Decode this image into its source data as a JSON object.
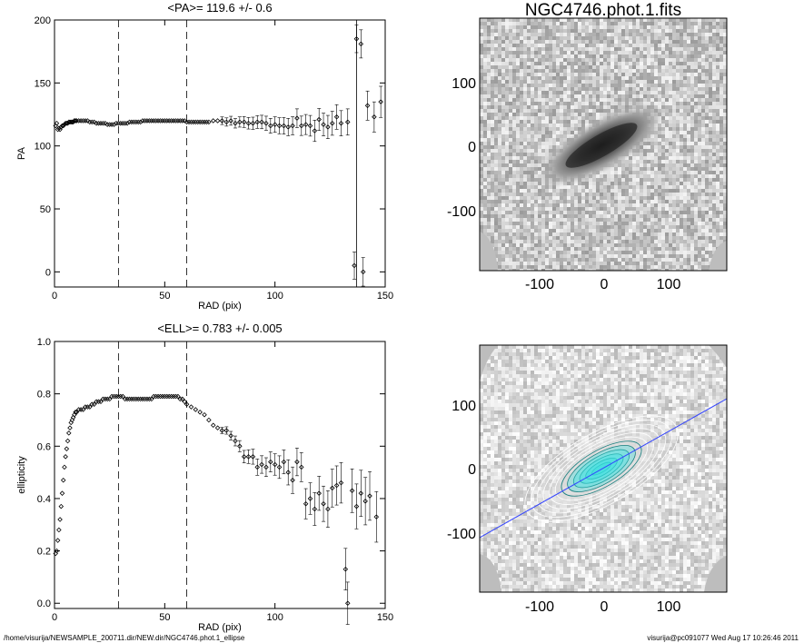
{
  "chart_data": [
    {
      "type": "scatter",
      "title": "<PA>= 119.6 +/-   0.6",
      "xlabel": "RAD (pix)",
      "ylabel": "PA",
      "xlim": [
        0,
        150
      ],
      "ylim": [
        -12,
        200
      ],
      "xticks": [
        0,
        50,
        100,
        150
      ],
      "yticks": [
        0,
        50,
        100,
        150,
        200
      ],
      "grid": false,
      "vlines_dashed": [
        29,
        60
      ],
      "vline_solid": 137,
      "points": [
        [
          0.5,
          116
        ],
        [
          1,
          118
        ],
        [
          1.5,
          113
        ],
        [
          2,
          114
        ],
        [
          2.5,
          113
        ],
        [
          3,
          115
        ],
        [
          3.5,
          116
        ],
        [
          4,
          116
        ],
        [
          4.5,
          117
        ],
        [
          5,
          118
        ],
        [
          5.5,
          118
        ],
        [
          6,
          118
        ],
        [
          6.5,
          119
        ],
        [
          7,
          119
        ],
        [
          7.5,
          119
        ],
        [
          8,
          119
        ],
        [
          8.5,
          119
        ],
        [
          9,
          120
        ],
        [
          9.5,
          120
        ],
        [
          10,
          120
        ],
        [
          11,
          120
        ],
        [
          12,
          120
        ],
        [
          13,
          120
        ],
        [
          14,
          120
        ],
        [
          15,
          120
        ],
        [
          16,
          119
        ],
        [
          17,
          119
        ],
        [
          18,
          119
        ],
        [
          19,
          118
        ],
        [
          20,
          118
        ],
        [
          21,
          118
        ],
        [
          22,
          118
        ],
        [
          23,
          118
        ],
        [
          24,
          117
        ],
        [
          25,
          117
        ],
        [
          26,
          117
        ],
        [
          27,
          117
        ],
        [
          28,
          118
        ],
        [
          29,
          118
        ],
        [
          30,
          118
        ],
        [
          31,
          118
        ],
        [
          32,
          118
        ],
        [
          33,
          118
        ],
        [
          34,
          119
        ],
        [
          35,
          119
        ],
        [
          36,
          119
        ],
        [
          37,
          119
        ],
        [
          38,
          119
        ],
        [
          39,
          119
        ],
        [
          40,
          120
        ],
        [
          41,
          120
        ],
        [
          42,
          120
        ],
        [
          43,
          120
        ],
        [
          44,
          120
        ],
        [
          45,
          120
        ],
        [
          46,
          120
        ],
        [
          47,
          120
        ],
        [
          48,
          120
        ],
        [
          49,
          120
        ],
        [
          50,
          120
        ],
        [
          51,
          120
        ],
        [
          52,
          120
        ],
        [
          53,
          120
        ],
        [
          54,
          120
        ],
        [
          55,
          120
        ],
        [
          56,
          120
        ],
        [
          57,
          120
        ],
        [
          58,
          120
        ],
        [
          59,
          120
        ],
        [
          60,
          119
        ],
        [
          61,
          119
        ],
        [
          62,
          119
        ],
        [
          63,
          119
        ],
        [
          64,
          119
        ],
        [
          65,
          119
        ],
        [
          66,
          119
        ],
        [
          67,
          119
        ],
        [
          68,
          119
        ],
        [
          69,
          119
        ],
        [
          70,
          119
        ],
        [
          72,
          120
        ],
        [
          74,
          120
        ],
        [
          76,
          120
        ],
        [
          78,
          119
        ],
        [
          80,
          120
        ],
        [
          82,
          118
        ],
        [
          84,
          119
        ],
        [
          86,
          119
        ],
        [
          88,
          118
        ],
        [
          90,
          118
        ],
        [
          92,
          119
        ],
        [
          94,
          119
        ],
        [
          96,
          118
        ],
        [
          98,
          116
        ],
        [
          100,
          117
        ],
        [
          102,
          116
        ],
        [
          104,
          116
        ],
        [
          106,
          115
        ],
        [
          108,
          116
        ],
        [
          110,
          122
        ],
        [
          112,
          116
        ],
        [
          114,
          117
        ],
        [
          116,
          116
        ],
        [
          118,
          112
        ],
        [
          120,
          121
        ],
        [
          122,
          117
        ],
        [
          124,
          115
        ],
        [
          126,
          118
        ],
        [
          128,
          123
        ],
        [
          130,
          118
        ],
        [
          133,
          119
        ],
        [
          136,
          5
        ],
        [
          137,
          185
        ],
        [
          139,
          181
        ],
        [
          140,
          0
        ],
        [
          142,
          132
        ],
        [
          145,
          123
        ],
        [
          148,
          135
        ]
      ]
    },
    {
      "type": "scatter",
      "title": "<ELL>= 0.783 +/-  0.005",
      "xlabel": "RAD (pix)",
      "ylabel": "ellipticity",
      "xlim": [
        0,
        150
      ],
      "ylim": [
        -0.02,
        1.0
      ],
      "xticks": [
        0,
        50,
        100,
        150
      ],
      "yticks": [
        0.0,
        0.2,
        0.4,
        0.6,
        0.8,
        1.0
      ],
      "grid": false,
      "vlines_dashed": [
        29,
        60
      ],
      "points": [
        [
          0.5,
          0.19
        ],
        [
          1,
          0.2
        ],
        [
          1.5,
          0.24
        ],
        [
          2,
          0.28
        ],
        [
          2.5,
          0.32
        ],
        [
          3,
          0.37
        ],
        [
          3.5,
          0.42
        ],
        [
          4,
          0.47
        ],
        [
          4.5,
          0.52
        ],
        [
          5,
          0.56
        ],
        [
          5.5,
          0.59
        ],
        [
          6,
          0.62
        ],
        [
          6.5,
          0.65
        ],
        [
          7,
          0.67
        ],
        [
          7.5,
          0.69
        ],
        [
          8,
          0.7
        ],
        [
          8.5,
          0.71
        ],
        [
          9,
          0.72
        ],
        [
          9.5,
          0.73
        ],
        [
          10,
          0.73
        ],
        [
          11,
          0.74
        ],
        [
          12,
          0.74
        ],
        [
          13,
          0.74
        ],
        [
          14,
          0.75
        ],
        [
          15,
          0.75
        ],
        [
          16,
          0.75
        ],
        [
          17,
          0.76
        ],
        [
          18,
          0.76
        ],
        [
          19,
          0.77
        ],
        [
          20,
          0.77
        ],
        [
          21,
          0.77
        ],
        [
          22,
          0.78
        ],
        [
          23,
          0.78
        ],
        [
          24,
          0.78
        ],
        [
          25,
          0.78
        ],
        [
          26,
          0.79
        ],
        [
          27,
          0.79
        ],
        [
          28,
          0.79
        ],
        [
          29,
          0.79
        ],
        [
          30,
          0.79
        ],
        [
          31,
          0.79
        ],
        [
          32,
          0.78
        ],
        [
          33,
          0.78
        ],
        [
          34,
          0.78
        ],
        [
          35,
          0.78
        ],
        [
          36,
          0.78
        ],
        [
          37,
          0.78
        ],
        [
          38,
          0.78
        ],
        [
          39,
          0.78
        ],
        [
          40,
          0.78
        ],
        [
          41,
          0.78
        ],
        [
          42,
          0.78
        ],
        [
          43,
          0.78
        ],
        [
          44,
          0.78
        ],
        [
          45,
          0.79
        ],
        [
          46,
          0.79
        ],
        [
          47,
          0.79
        ],
        [
          48,
          0.79
        ],
        [
          49,
          0.79
        ],
        [
          50,
          0.79
        ],
        [
          51,
          0.79
        ],
        [
          52,
          0.79
        ],
        [
          53,
          0.79
        ],
        [
          54,
          0.79
        ],
        [
          55,
          0.79
        ],
        [
          56,
          0.79
        ],
        [
          57,
          0.78
        ],
        [
          58,
          0.78
        ],
        [
          59,
          0.77
        ],
        [
          60,
          0.76
        ],
        [
          62,
          0.75
        ],
        [
          64,
          0.74
        ],
        [
          66,
          0.73
        ],
        [
          68,
          0.72
        ],
        [
          70,
          0.7
        ],
        [
          72,
          0.68
        ],
        [
          74,
          0.67
        ],
        [
          76,
          0.66
        ],
        [
          78,
          0.66
        ],
        [
          80,
          0.64
        ],
        [
          82,
          0.62
        ],
        [
          84,
          0.6
        ],
        [
          86,
          0.56
        ],
        [
          88,
          0.56
        ],
        [
          90,
          0.56
        ],
        [
          92,
          0.52
        ],
        [
          94,
          0.53
        ],
        [
          96,
          0.52
        ],
        [
          98,
          0.54
        ],
        [
          100,
          0.53
        ],
        [
          102,
          0.52
        ],
        [
          104,
          0.54
        ],
        [
          106,
          0.5
        ],
        [
          108,
          0.47
        ],
        [
          110,
          0.54
        ],
        [
          112,
          0.52
        ],
        [
          114,
          0.38
        ],
        [
          116,
          0.4
        ],
        [
          118,
          0.36
        ],
        [
          120,
          0.42
        ],
        [
          122,
          0.38
        ],
        [
          124,
          0.36
        ],
        [
          126,
          0.44
        ],
        [
          128,
          0.45
        ],
        [
          130,
          0.46
        ],
        [
          132,
          0.13
        ],
        [
          133,
          0.0
        ],
        [
          135,
          0.43
        ],
        [
          137,
          0.37
        ],
        [
          139,
          0.42
        ],
        [
          141,
          0.39
        ],
        [
          143,
          0.41
        ],
        [
          146,
          0.33
        ]
      ]
    }
  ],
  "images": {
    "top": {
      "title": "NGC4746.phot.1.fits",
      "ticks": [
        "100",
        "0",
        "-100"
      ],
      "xticks": [
        "-100",
        "0",
        "100"
      ]
    },
    "bottom": {
      "ticks": [
        "100",
        "0",
        "-100"
      ],
      "xticks": [
        "-100",
        "0",
        "100"
      ],
      "line_color": "#3344ff",
      "contour_fill": "#33dddd"
    }
  },
  "footer": {
    "left": "/home/visurija/NEWSAMPLE_200711.dir/NEW.dir/NGC4746.phot.1_ellipse",
    "right": "visurija@pc091077  Wed Aug 17 10:26:46 2011"
  }
}
